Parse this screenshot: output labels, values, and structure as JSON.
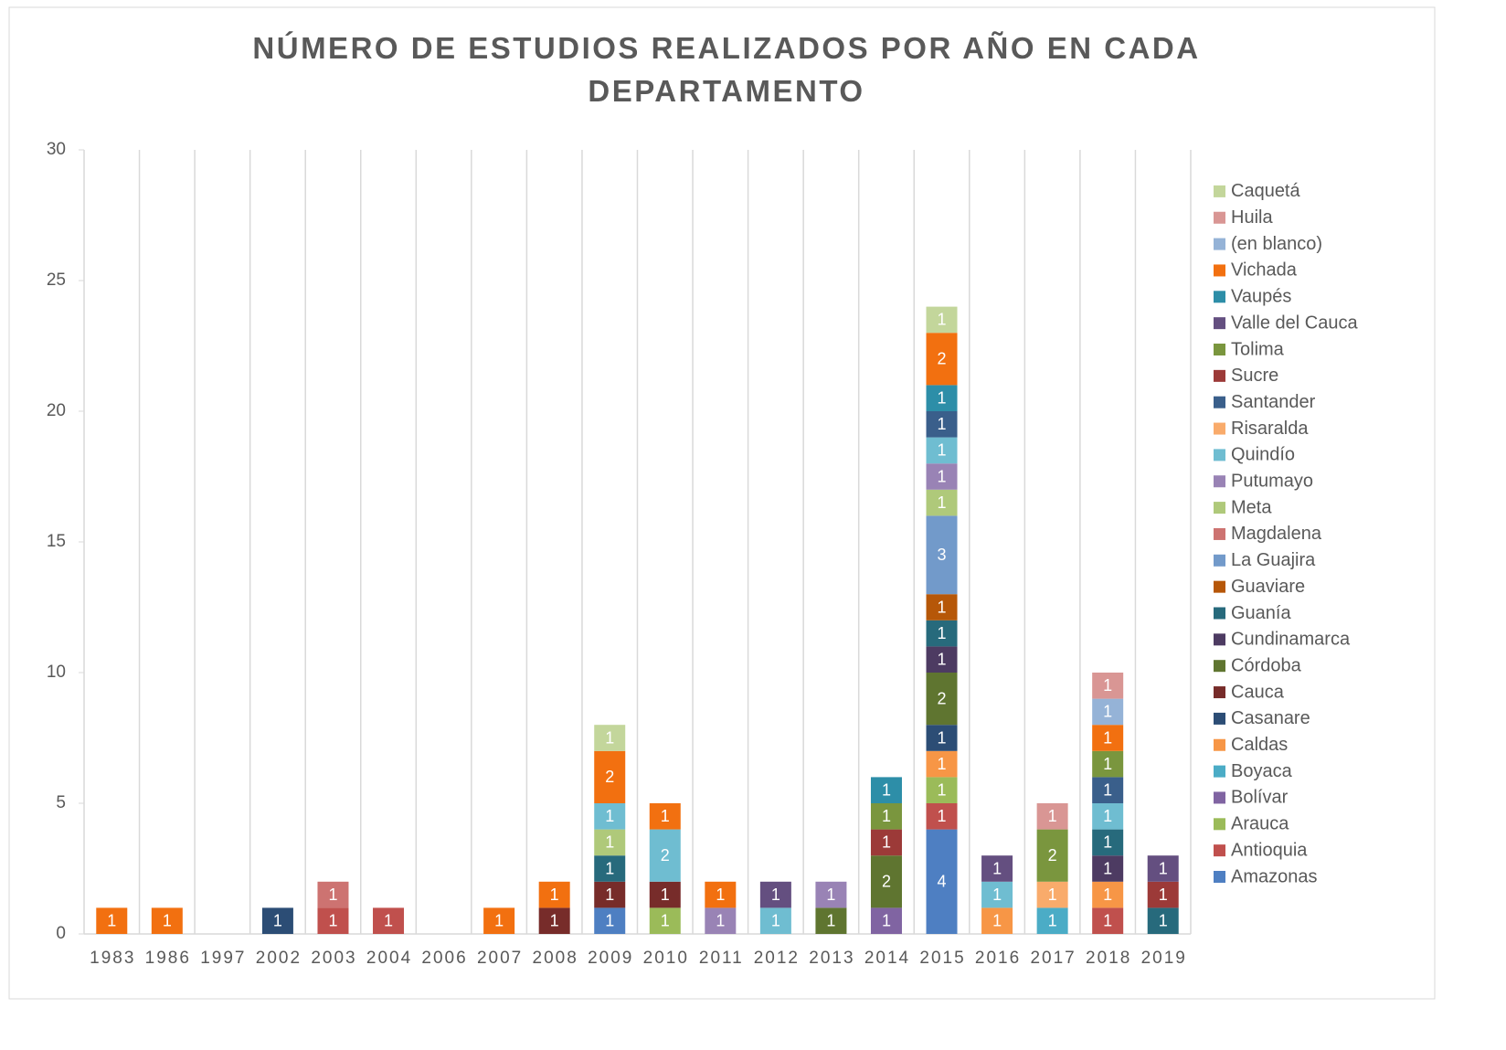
{
  "chart_data": {
    "type": "stacked_bar",
    "title": "NÚMERO DE ESTUDIOS REALIZADOS POR AÑO EN CADA DEPARTAMENTO",
    "categories": [
      "1983",
      "1986",
      "1997",
      "2002",
      "2003",
      "2004",
      "2006",
      "2007",
      "2008",
      "2009",
      "2010",
      "2011",
      "2012",
      "2013",
      "2014",
      "2015",
      "2016",
      "2017",
      "2018",
      "2019"
    ],
    "ylim": [
      0,
      30
    ],
    "yticks": [
      0,
      5,
      10,
      15,
      20,
      25,
      30
    ],
    "grid": false,
    "legend": "right",
    "series": [
      {
        "name": "Amazonas",
        "color": "#4e7fc2",
        "values": [
          null,
          null,
          null,
          null,
          null,
          null,
          null,
          null,
          null,
          1,
          null,
          null,
          null,
          null,
          null,
          4,
          null,
          null,
          null,
          null
        ]
      },
      {
        "name": "Antioquia",
        "color": "#c0504d",
        "values": [
          null,
          null,
          null,
          null,
          1,
          1,
          null,
          null,
          null,
          null,
          null,
          null,
          null,
          null,
          null,
          1,
          null,
          null,
          1,
          null
        ]
      },
      {
        "name": "Arauca",
        "color": "#9bbb59",
        "values": [
          null,
          null,
          null,
          null,
          null,
          null,
          null,
          null,
          null,
          null,
          1,
          null,
          null,
          null,
          null,
          1,
          null,
          null,
          null,
          null
        ]
      },
      {
        "name": "Bolívar",
        "color": "#8064a2",
        "values": [
          null,
          null,
          null,
          null,
          null,
          null,
          null,
          null,
          null,
          null,
          null,
          null,
          null,
          null,
          1,
          null,
          null,
          null,
          null,
          null
        ]
      },
      {
        "name": "Boyaca",
        "color": "#4bacc6",
        "values": [
          null,
          null,
          null,
          null,
          null,
          null,
          null,
          null,
          null,
          null,
          null,
          null,
          null,
          null,
          null,
          null,
          null,
          1,
          null,
          null
        ]
      },
      {
        "name": "Caldas",
        "color": "#f79646",
        "values": [
          null,
          null,
          null,
          null,
          null,
          null,
          null,
          null,
          null,
          null,
          null,
          null,
          null,
          null,
          null,
          1,
          1,
          null,
          1,
          null
        ]
      },
      {
        "name": "Casanare",
        "color": "#2c4d75",
        "values": [
          null,
          null,
          null,
          1,
          null,
          null,
          null,
          null,
          null,
          null,
          null,
          null,
          null,
          null,
          null,
          1,
          null,
          null,
          null,
          null
        ]
      },
      {
        "name": "Cauca",
        "color": "#772c2a",
        "values": [
          null,
          null,
          null,
          null,
          null,
          null,
          null,
          null,
          1,
          1,
          1,
          null,
          null,
          null,
          null,
          null,
          null,
          null,
          null,
          null
        ]
      },
      {
        "name": "Córdoba",
        "color": "#5f7530",
        "values": [
          null,
          null,
          null,
          null,
          null,
          null,
          null,
          null,
          null,
          null,
          null,
          null,
          null,
          1,
          2,
          2,
          null,
          null,
          null,
          null
        ]
      },
      {
        "name": "Cundinamarca",
        "color": "#4d3b62",
        "values": [
          null,
          null,
          null,
          null,
          null,
          null,
          null,
          null,
          null,
          null,
          null,
          null,
          null,
          null,
          null,
          1,
          null,
          null,
          1,
          null
        ]
      },
      {
        "name": "Guanía",
        "color": "#276a7c",
        "values": [
          null,
          null,
          null,
          null,
          null,
          null,
          null,
          null,
          null,
          1,
          null,
          null,
          null,
          null,
          null,
          1,
          null,
          null,
          1,
          1
        ]
      },
      {
        "name": "Guaviare",
        "color": "#b65708",
        "values": [
          null,
          null,
          null,
          null,
          null,
          null,
          null,
          null,
          null,
          null,
          null,
          null,
          null,
          null,
          null,
          1,
          null,
          null,
          null,
          null
        ]
      },
      {
        "name": "La Guajira",
        "color": "#729aca",
        "values": [
          null,
          null,
          null,
          null,
          null,
          null,
          null,
          null,
          null,
          null,
          null,
          null,
          null,
          null,
          null,
          3,
          null,
          null,
          null,
          null
        ]
      },
      {
        "name": "Magdalena",
        "color": "#cd7371",
        "values": [
          null,
          null,
          null,
          null,
          1,
          null,
          null,
          null,
          null,
          null,
          null,
          null,
          null,
          null,
          null,
          null,
          null,
          null,
          null,
          null
        ]
      },
      {
        "name": "Meta",
        "color": "#afc97a",
        "values": [
          null,
          null,
          null,
          null,
          null,
          null,
          null,
          null,
          null,
          1,
          null,
          null,
          null,
          null,
          null,
          1,
          null,
          null,
          null,
          null
        ]
      },
      {
        "name": "Putumayo",
        "color": "#9983b5",
        "values": [
          null,
          null,
          null,
          null,
          null,
          null,
          null,
          null,
          null,
          null,
          null,
          1,
          null,
          1,
          null,
          1,
          null,
          null,
          null,
          null
        ]
      },
      {
        "name": "Quindío",
        "color": "#6fbdd1",
        "values": [
          null,
          null,
          null,
          null,
          null,
          null,
          null,
          null,
          null,
          1,
          2,
          null,
          1,
          null,
          null,
          1,
          1,
          null,
          1,
          null
        ]
      },
      {
        "name": "Risaralda",
        "color": "#f9ab6b",
        "values": [
          null,
          null,
          null,
          null,
          null,
          null,
          null,
          null,
          null,
          null,
          null,
          null,
          null,
          null,
          null,
          null,
          null,
          1,
          null,
          null
        ]
      },
      {
        "name": "Santander",
        "color": "#3a5f8b",
        "values": [
          null,
          null,
          null,
          null,
          null,
          null,
          null,
          null,
          null,
          null,
          null,
          null,
          null,
          null,
          null,
          1,
          null,
          null,
          1,
          null
        ]
      },
      {
        "name": "Sucre",
        "color": "#9c3a38",
        "values": [
          null,
          null,
          null,
          null,
          null,
          null,
          null,
          null,
          null,
          null,
          null,
          null,
          null,
          null,
          1,
          null,
          null,
          null,
          null,
          1
        ]
      },
      {
        "name": "Tolima",
        "color": "#7a963e",
        "values": [
          null,
          null,
          null,
          null,
          null,
          null,
          null,
          null,
          null,
          null,
          null,
          null,
          null,
          null,
          1,
          null,
          null,
          2,
          1,
          null
        ]
      },
      {
        "name": "Valle del Cauca",
        "color": "#644f80",
        "values": [
          null,
          null,
          null,
          null,
          null,
          null,
          null,
          null,
          null,
          null,
          null,
          null,
          1,
          null,
          null,
          null,
          1,
          null,
          null,
          1
        ]
      },
      {
        "name": "Vaupés",
        "color": "#2d8ea8",
        "values": [
          null,
          null,
          null,
          null,
          null,
          null,
          null,
          null,
          null,
          null,
          null,
          null,
          null,
          null,
          1,
          1,
          null,
          null,
          null,
          null
        ]
      },
      {
        "name": "Vichada",
        "color": "#f27010",
        "values": [
          1,
          1,
          null,
          null,
          null,
          null,
          null,
          1,
          1,
          2,
          1,
          1,
          null,
          null,
          null,
          2,
          null,
          null,
          1,
          null
        ]
      },
      {
        "name": "(en blanco)",
        "color": "#95b3d7",
        "values": [
          null,
          null,
          null,
          null,
          null,
          null,
          null,
          null,
          null,
          null,
          null,
          null,
          null,
          null,
          null,
          null,
          null,
          null,
          1,
          null
        ]
      },
      {
        "name": "Huila",
        "color": "#d99694",
        "values": [
          null,
          null,
          null,
          null,
          null,
          null,
          null,
          null,
          null,
          null,
          null,
          null,
          null,
          null,
          null,
          null,
          null,
          1,
          1,
          null
        ]
      },
      {
        "name": "Caquetá",
        "color": "#c3d69b",
        "values": [
          null,
          null,
          null,
          null,
          null,
          null,
          null,
          null,
          null,
          1,
          null,
          null,
          null,
          null,
          null,
          1,
          null,
          null,
          null,
          null
        ]
      }
    ]
  }
}
